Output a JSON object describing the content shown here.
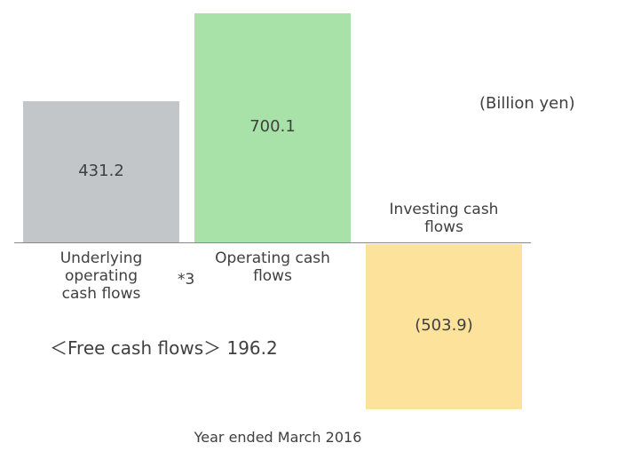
{
  "chart_data": {
    "type": "bar",
    "unit": "(Billion yen)",
    "x_label": "Year ended March 2016",
    "categories": [
      "Underlying operating cash flows",
      "Operating cash flows",
      "Investing cash flows"
    ],
    "values": [
      431.2,
      700.1,
      -503.9
    ],
    "value_labels": [
      "431.2",
      "700.1",
      "(503.9)"
    ],
    "colors": [
      "#c3c6c9",
      "#a8e2a8",
      "#fde29b"
    ],
    "footnote_mark": "*3",
    "free_cash_flow_label": "＜Free cash flows＞",
    "free_cash_flow_value": 196.2
  }
}
